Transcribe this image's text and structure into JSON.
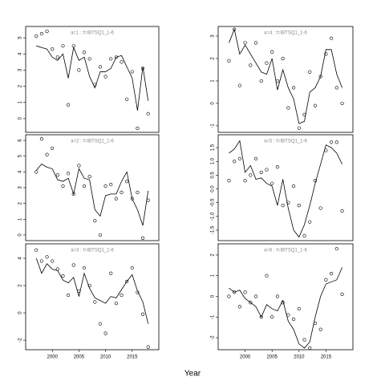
{
  "xlabel": "Year",
  "chart_data": [
    {
      "type": "line",
      "title": "a=1  :  f=IBTSQ1_1-6",
      "xlim": [
        1995,
        2020
      ],
      "ylim": [
        -0.85,
        5.7
      ],
      "yticks": [
        0,
        1,
        2,
        3,
        4,
        5
      ],
      "x": [
        1997,
        1998,
        1999,
        2000,
        2001,
        2002,
        2003,
        2004,
        2005,
        2006,
        2007,
        2008,
        2009,
        2010,
        2011,
        2012,
        2013,
        2014,
        2015,
        2016,
        2017,
        2018
      ],
      "series": [
        {
          "color": "#000000",
          "marker": "circle",
          "values": [
            5.1,
            5.25,
            5.4,
            4.3,
            3.8,
            4.5,
            0.85,
            4.5,
            3.0,
            4.1,
            3.7,
            2.1,
            3.2,
            2.6,
            3.7,
            3.8,
            3.5,
            1.2,
            2.9,
            -0.6,
            3.1,
            0.3
          ]
        },
        {
          "color": "#000000",
          "marker": "none",
          "values": [
            4.5,
            4.4,
            4.3,
            3.8,
            3.6,
            4.0,
            2.5,
            4.4,
            3.6,
            3.8,
            2.6,
            1.9,
            2.9,
            2.9,
            3.1,
            3.8,
            3.9,
            3.2,
            2.5,
            0.5,
            3.2,
            1.1
          ]
        }
      ]
    },
    {
      "type": "line",
      "title": "a=2  :  f=IBTSQ1_1-6",
      "xlim": [
        1995,
        2020
      ],
      "ylim": [
        -0.36,
        6.36
      ],
      "yticks": [
        0,
        1,
        2,
        3,
        4,
        5,
        6
      ],
      "x": [
        1997,
        1998,
        1999,
        2000,
        2001,
        2002,
        2003,
        2004,
        2005,
        2006,
        2007,
        2008,
        2009,
        2010,
        2011,
        2012,
        2013,
        2014,
        2015,
        2016,
        2017,
        2018
      ],
      "series": [
        {
          "color": "#000000",
          "marker": "circle",
          "values": [
            4.0,
            6.1,
            5.1,
            5.5,
            3.8,
            3.1,
            3.9,
            2.6,
            4.4,
            3.1,
            3.7,
            0.9,
            0.0,
            3.1,
            3.2,
            2.3,
            2.7,
            3.4,
            2.3,
            2.7,
            -0.2,
            2.2
          ]
        },
        {
          "color": "#000000",
          "marker": "none",
          "values": [
            4.1,
            4.5,
            4.3,
            4.2,
            3.5,
            3.4,
            3.6,
            2.6,
            4.2,
            3.6,
            3.5,
            1.6,
            1.2,
            2.5,
            2.6,
            2.6,
            3.4,
            4.0,
            2.3,
            1.6,
            0.6,
            2.8
          ]
        }
      ]
    },
    {
      "type": "line",
      "title": "a=3  :  f=IBTSQ1_1-6",
      "xlim": [
        1995,
        2020
      ],
      "ylim": [
        -2.7,
        5.06
      ],
      "yticks": [
        -2,
        0,
        2,
        4
      ],
      "xticks": [
        2000,
        2005,
        2010,
        2015
      ],
      "x": [
        1997,
        1998,
        1999,
        2000,
        2001,
        2002,
        2003,
        2004,
        2005,
        2006,
        2007,
        2008,
        2009,
        2010,
        2011,
        2012,
        2013,
        2014,
        2015,
        2016,
        2017,
        2018
      ],
      "series": [
        {
          "color": "#000000",
          "marker": "circle",
          "values": [
            4.6,
            3.8,
            4.1,
            3.8,
            3.2,
            2.7,
            1.3,
            3.5,
            1.6,
            3.3,
            2.0,
            0.8,
            -0.8,
            -1.5,
            2.9,
            0.7,
            1.3,
            2.3,
            3.3,
            1.5,
            -0.1,
            -2.5
          ]
        },
        {
          "color": "#000000",
          "marker": "none",
          "values": [
            4.0,
            2.9,
            3.6,
            3.2,
            3.1,
            2.4,
            2.2,
            2.6,
            1.2,
            2.9,
            1.8,
            1.1,
            0.9,
            0.7,
            1.2,
            1.1,
            1.7,
            2.3,
            2.8,
            1.6,
            0.8,
            -0.8
          ]
        }
      ]
    },
    {
      "type": "line",
      "title": "a=4  :  f=IBTSQ1_1-6",
      "xlim": [
        1995,
        2020
      ],
      "ylim": [
        -1.29,
        3.43
      ],
      "yticks": [
        -1,
        0,
        1,
        2,
        3
      ],
      "x": [
        1997,
        1998,
        1999,
        2000,
        2001,
        2002,
        2003,
        2004,
        2005,
        2006,
        2007,
        2008,
        2009,
        2010,
        2011,
        2012,
        2013,
        2014,
        2015,
        2016,
        2017,
        2018
      ],
      "series": [
        {
          "color": "#000000",
          "marker": "circle",
          "values": [
            1.9,
            3.3,
            0.8,
            2.7,
            1.7,
            2.7,
            1.0,
            1.8,
            2.3,
            1.0,
            2.0,
            -0.2,
            0.7,
            -1.1,
            -0.5,
            1.4,
            -0.1,
            1.2,
            2.2,
            2.9,
            0.7,
            0.0
          ]
        },
        {
          "color": "#000000",
          "marker": "none",
          "values": [
            2.7,
            3.3,
            2.2,
            2.6,
            2.2,
            1.8,
            1.4,
            1.3,
            2.0,
            0.6,
            1.5,
            0.7,
            0.2,
            -0.9,
            -0.8,
            0.5,
            0.7,
            1.2,
            2.4,
            2.4,
            1.3,
            0.7
          ]
        }
      ]
    },
    {
      "type": "line",
      "title": "a=5  :  f=IBTSQ1_1-6",
      "xlim": [
        1995,
        2020
      ],
      "ylim": [
        -1.88,
        1.97
      ],
      "yticks": [
        -1.5,
        {
          "value": -1,
          "label": "-1.0"
        },
        -0.5,
        {
          "value": 0,
          "label": "0.0"
        },
        0.5,
        {
          "value": 1,
          "label": "1.0"
        },
        1.5
      ],
      "x": [
        1997,
        1998,
        1999,
        2000,
        2001,
        2002,
        2003,
        2004,
        2005,
        2006,
        2007,
        2008,
        2009,
        2010,
        2011,
        2012,
        2013,
        2014,
        2015,
        2016,
        2017,
        2018
      ],
      "series": [
        {
          "color": "#000000",
          "marker": "circle",
          "values": [
            0.3,
            1.0,
            1.1,
            0.3,
            0.5,
            1.1,
            0.6,
            0.7,
            0.2,
            0.8,
            -0.6,
            -0.5,
            0.1,
            -0.6,
            -1.7,
            -1.2,
            0.3,
            -0.7,
            1.4,
            1.7,
            1.7,
            -0.8
          ]
        },
        {
          "color": "#000000",
          "marker": "none",
          "values": [
            1.3,
            1.45,
            1.75,
            0.6,
            0.85,
            0.35,
            0.4,
            0.2,
            0.1,
            -0.6,
            0.35,
            -0.7,
            -1.5,
            -1.75,
            -1.3,
            -0.6,
            0.2,
            0.9,
            1.6,
            1.5,
            1.3,
            0.9
          ]
        }
      ]
    },
    {
      "type": "line",
      "title": "a=6  :  f=IBTSQ1_1-6",
      "xlim": [
        1995,
        2020
      ],
      "ylim": [
        -2.58,
        2.54
      ],
      "yticks": [
        -2,
        -1,
        0,
        1,
        2
      ],
      "xticks": [
        2000,
        2005,
        2010,
        2015
      ],
      "x": [
        1997,
        1998,
        1999,
        2000,
        2001,
        2002,
        2003,
        2004,
        2005,
        2006,
        2007,
        2008,
        2009,
        2010,
        2011,
        2012,
        2013,
        2014,
        2015,
        2016,
        2017,
        2018
      ],
      "series": [
        {
          "color": "#000000",
          "marker": "circle",
          "values": [
            0.0,
            0.2,
            -0.5,
            0.2,
            -0.3,
            0.0,
            -1.0,
            1.0,
            -1.0,
            0.0,
            -0.3,
            -0.9,
            -1.1,
            -0.6,
            -2.1,
            -2.5,
            -1.3,
            -1.6,
            0.8,
            1.1,
            2.3,
            0.1
          ]
        },
        {
          "color": "#000000",
          "marker": "none",
          "values": [
            0.4,
            0.2,
            0.3,
            -0.1,
            -0.3,
            -0.5,
            -1.0,
            -0.4,
            -0.6,
            -0.7,
            -0.2,
            -1.2,
            -1.6,
            -2.3,
            -2.5,
            -2.2,
            -1.0,
            0.0,
            0.6,
            0.7,
            0.8,
            1.4
          ]
        }
      ]
    }
  ]
}
